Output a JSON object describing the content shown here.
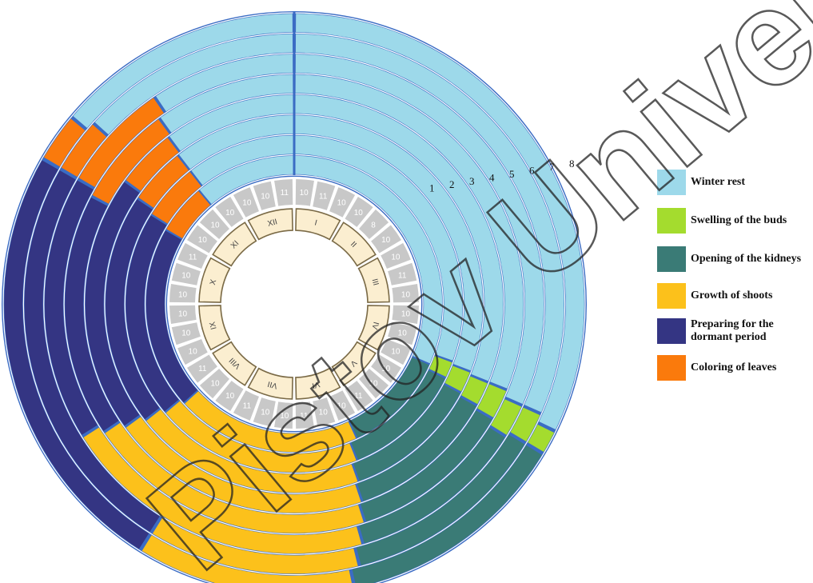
{
  "chart_data": {
    "type": "radial-phenology",
    "months": [
      "I",
      "II",
      "III",
      "IV",
      "V",
      "VI",
      "VII",
      "VIII",
      "IX",
      "X",
      "XI",
      "XII"
    ],
    "decades_per_month": [
      [
        10,
        11,
        10
      ],
      [
        10,
        8,
        10
      ],
      [
        10,
        11,
        10
      ],
      [
        10,
        10,
        10
      ],
      [
        10,
        10,
        11
      ],
      [
        10,
        10,
        11
      ],
      [
        10,
        10,
        11
      ],
      [
        10,
        10,
        11
      ],
      [
        10,
        10,
        10
      ],
      [
        10,
        10,
        11
      ],
      [
        10,
        10,
        10
      ],
      [
        10,
        10,
        11
      ]
    ],
    "ring_labels": [
      "1",
      "2",
      "3",
      "4",
      "5",
      "6",
      "7",
      "8"
    ],
    "phases": [
      {
        "name": "Winter rest",
        "color": "#9dd9ea"
      },
      {
        "name": "Swelling of the buds",
        "color": "#a4dc2e"
      },
      {
        "name": "Opening of the kidneys",
        "color": "#3a7b76"
      },
      {
        "name": "Growth of shoots",
        "color": "#fcc11b"
      },
      {
        "name": "Preparing for the dormant period",
        "color": "#343583"
      },
      {
        "name": "Coloring of leaves",
        "color": "#fa7a0c"
      }
    ],
    "rings": [
      {
        "label": "1",
        "phases": [
          [
            "Winter rest",
            0,
            114
          ],
          [
            "Opening of the kidneys",
            114,
            155
          ],
          [
            "Growth of shoots",
            155,
            228
          ],
          [
            "Preparing for the dormant period",
            228,
            300
          ],
          [
            "Coloring of leaves",
            300,
            320
          ],
          [
            "Winter rest",
            320,
            360
          ]
        ]
      },
      {
        "label": "2",
        "phases": [
          [
            "Winter rest",
            0,
            110
          ],
          [
            "Swelling of the buds",
            110,
            116
          ],
          [
            "Opening of the kidneys",
            116,
            158
          ],
          [
            "Growth of shoots",
            158,
            230
          ],
          [
            "Preparing for the dormant period",
            230,
            302
          ],
          [
            "Coloring of leaves",
            302,
            322
          ],
          [
            "Winter rest",
            322,
            360
          ]
        ]
      },
      {
        "label": "3",
        "phases": [
          [
            "Winter rest",
            0,
            111
          ],
          [
            "Swelling of the buds",
            111,
            118
          ],
          [
            "Opening of the kidneys",
            118,
            160
          ],
          [
            "Growth of shoots",
            160,
            232
          ],
          [
            "Preparing for the dormant period",
            232,
            304
          ],
          [
            "Coloring of leaves",
            304,
            322
          ],
          [
            "Winter rest",
            322,
            360
          ]
        ]
      },
      {
        "label": "4",
        "phases": [
          [
            "Winter rest",
            0,
            112
          ],
          [
            "Swelling of the buds",
            112,
            119
          ],
          [
            "Opening of the kidneys",
            119,
            161
          ],
          [
            "Growth of shoots",
            161,
            234
          ],
          [
            "Preparing for the dormant period",
            234,
            306
          ],
          [
            "Coloring of leaves",
            306,
            323
          ],
          [
            "Winter rest",
            323,
            360
          ]
        ]
      },
      {
        "label": "5",
        "phases": [
          [
            "Winter rest",
            0,
            112
          ],
          [
            "Swelling of the buds",
            112,
            120
          ],
          [
            "Opening of the kidneys",
            120,
            162
          ],
          [
            "Growth of shoots",
            162,
            236
          ],
          [
            "Preparing for the dormant period",
            236,
            298
          ],
          [
            "Coloring of leaves",
            298,
            324
          ],
          [
            "Winter rest",
            324,
            360
          ]
        ]
      },
      {
        "label": "6",
        "phases": [
          [
            "Winter rest",
            0,
            114
          ],
          [
            "Swelling of the buds",
            114,
            122
          ],
          [
            "Opening of the kidneys",
            122,
            164
          ],
          [
            "Growth of shoots",
            164,
            238
          ],
          [
            "Preparing for the dormant period",
            238,
            300
          ],
          [
            "Coloring of leaves",
            300,
            326
          ],
          [
            "Winter rest",
            326,
            360
          ]
        ]
      },
      {
        "label": "7",
        "phases": [
          [
            "Winter rest",
            0,
            114
          ],
          [
            "Swelling of the buds",
            114,
            121
          ],
          [
            "Opening of the kidneys",
            121,
            166
          ],
          [
            "Growth of shoots",
            166,
            212
          ],
          [
            "Preparing for the dormant period",
            212,
            300
          ],
          [
            "Coloring of leaves",
            300,
            312
          ],
          [
            "Winter rest",
            312,
            360
          ]
        ]
      },
      {
        "label": "8",
        "phases": [
          [
            "Winter rest",
            0,
            116
          ],
          [
            "Swelling of the buds",
            116,
            121
          ],
          [
            "Opening of the kidneys",
            121,
            168
          ],
          [
            "Growth of shoots",
            168,
            212
          ],
          [
            "Preparing for the dormant period",
            212,
            300
          ],
          [
            "Coloring of leaves",
            300,
            310
          ],
          [
            "Winter rest",
            310,
            360
          ]
        ]
      }
    ],
    "legend_placement": "right"
  },
  "watermark": {
    "text": "Pistov University"
  }
}
